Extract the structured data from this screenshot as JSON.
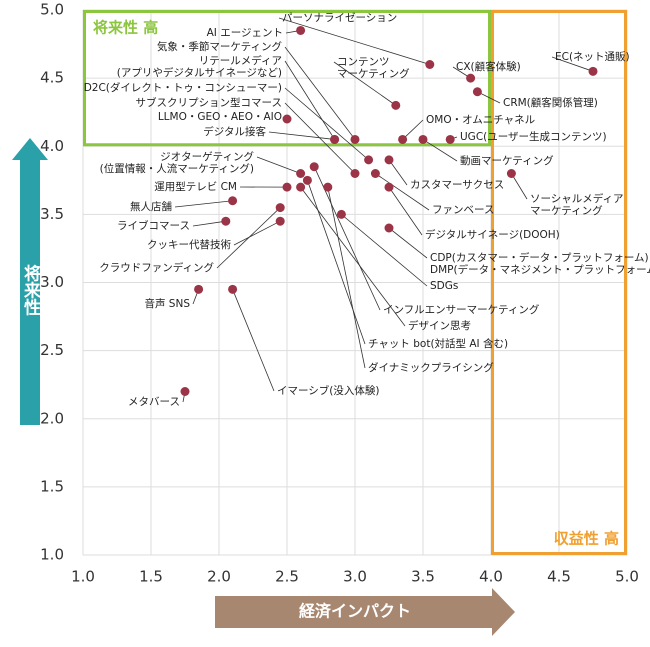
{
  "chart_data": {
    "type": "scatter",
    "x_label": "経済インパクト",
    "y_label": "将来性",
    "xlim": [
      1.0,
      5.0
    ],
    "ylim": [
      1.0,
      5.0
    ],
    "xticks": [
      {
        "value": 1,
        "label": "1.0"
      },
      1.5,
      {
        "value": 2,
        "label": "2.0"
      },
      2.5,
      {
        "value": 3,
        "label": "3.0"
      },
      3.5,
      {
        "value": 4,
        "label": "4.0"
      },
      4.5,
      {
        "value": 5,
        "label": "5.0"
      }
    ],
    "yticks": [
      {
        "value": 1,
        "label": "1.0"
      },
      1.5,
      {
        "value": 2,
        "label": "2.0"
      },
      2.5,
      {
        "value": 3,
        "label": "3.0"
      },
      3.5,
      {
        "value": 4,
        "label": "4.0"
      },
      4.5,
      {
        "value": 5,
        "label": "5.0"
      }
    ],
    "grid": true,
    "color": "#9b3446",
    "regions": [
      {
        "label": "将来性 高",
        "x": [
          1.0,
          4.0
        ],
        "y": [
          4.0,
          5.0
        ],
        "color": "#8cc63f"
      },
      {
        "label": "収益性 高",
        "x": [
          4.0,
          5.0
        ],
        "y": [
          1.0,
          5.0
        ],
        "color": "#f0a030"
      }
    ],
    "labels": [
      "パーソナライゼーション",
      "EC(ネット通販)",
      "CX(顧客体験)",
      "CRM(顧客関係管理)",
      "AI エージェント",
      "気象・季節マーケティング",
      "リテールメディア\n(アプリやデジタルサイネージなど)",
      "コンテンツ\nマーケティング",
      "D2C(ダイレクト・トゥ・コンシューマー)",
      "サブスクリプション型コマース",
      "LLMO・GEO・AEO・AIO",
      "OMO・オムニチャネル",
      "UGC(ユーザー生成コンテンツ)",
      "デジタル接客",
      "動画マーケティング",
      "ジオターゲティング\n(位置情報・人流マーケティング)",
      "ソーシャルメディア\nマーケティング",
      "カスタマーサクセス",
      "運用型テレビ CM",
      "ファンベース",
      "無人店舗",
      "ライブコマース",
      "デジタルサイネージ(DOOH)",
      "クッキー代替技術",
      "CDP(カスタマー・データ・プラットフォーム)・\nDMP(データ・マネジメント・プラットフォーム)",
      "クラウドファンディング",
      "SDGs",
      "音声 SNS",
      "インフルエンサーマーケティング",
      "デザイン思考",
      "チャット bot(対話型 AI 含む)",
      "メタバース",
      "ダイナミックプライシング",
      "イマーシブ(没入体験)"
    ],
    "x": [
      3.55,
      4.75,
      3.85,
      3.9,
      2.6,
      3.0,
      2.85,
      3.3,
      3.1,
      3.0,
      2.5,
      3.35,
      3.7,
      2.85,
      3.5,
      2.6,
      4.15,
      3.25,
      2.5,
      3.15,
      2.1,
      2.05,
      3.25,
      2.45,
      3.25,
      2.45,
      2.9,
      1.85,
      2.7,
      2.6,
      2.65,
      1.75,
      2.8,
      2.1
    ],
    "values": [
      4.6,
      4.55,
      4.5,
      4.4,
      4.85,
      4.05,
      4.05,
      4.3,
      3.9,
      3.8,
      4.2,
      4.05,
      4.05,
      4.05,
      4.05,
      3.8,
      3.8,
      3.9,
      3.7,
      3.8,
      3.6,
      3.45,
      3.7,
      3.45,
      3.4,
      3.55,
      3.5,
      2.95,
      3.85,
      3.7,
      3.75,
      2.2,
      3.7,
      2.95
    ]
  }
}
